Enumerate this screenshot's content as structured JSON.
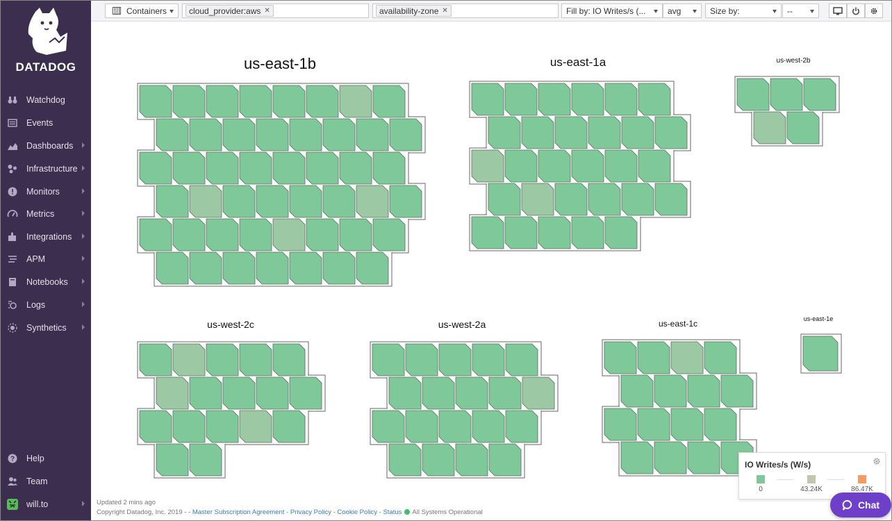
{
  "app": {
    "brand": "DATADOG"
  },
  "sidebar": {
    "items": [
      {
        "label": "Watchdog",
        "icon": "binoculars-icon",
        "chevron": false
      },
      {
        "label": "Events",
        "icon": "events-icon",
        "chevron": false
      },
      {
        "label": "Dashboards",
        "icon": "dashboards-icon",
        "chevron": true
      },
      {
        "label": "Infrastructure",
        "icon": "infrastructure-icon",
        "chevron": true
      },
      {
        "label": "Monitors",
        "icon": "monitors-icon",
        "chevron": true
      },
      {
        "label": "Metrics",
        "icon": "metrics-icon",
        "chevron": true
      },
      {
        "label": "Integrations",
        "icon": "integrations-icon",
        "chevron": true
      },
      {
        "label": "APM",
        "icon": "apm-icon",
        "chevron": true
      },
      {
        "label": "Notebooks",
        "icon": "notebooks-icon",
        "chevron": true
      },
      {
        "label": "Logs",
        "icon": "logs-icon",
        "chevron": true
      },
      {
        "label": "Synthetics",
        "icon": "synthetics-icon",
        "chevron": true
      }
    ],
    "bottom": [
      {
        "label": "Help",
        "icon": "help-icon",
        "chevron": false
      },
      {
        "label": "Team",
        "icon": "team-icon",
        "chevron": false
      },
      {
        "label": "will.to",
        "icon": "user-avatar-icon",
        "chevron": true
      }
    ]
  },
  "toolbar": {
    "type_select": "Containers",
    "filter_tag": "cloud_provider:aws",
    "group_tag": "availability-zone",
    "fill_by": "Fill by: IO Writes/s (...",
    "fill_agg": "avg",
    "size_by": "Size by:",
    "size_agg": "--"
  },
  "zones": [
    {
      "name": "us-east-1b",
      "rows": [
        8,
        8,
        8,
        8,
        8,
        7
      ],
      "tint": [
        [
          3,
          1
        ],
        [
          3,
          6
        ],
        [
          4,
          4
        ],
        [
          0,
          6
        ]
      ]
    },
    {
      "name": "us-east-1a",
      "rows": [
        6,
        6,
        6,
        6,
        5
      ],
      "tint": [
        [
          2,
          0
        ],
        [
          3,
          1
        ]
      ]
    },
    {
      "name": "us-west-2b",
      "rows": [
        3,
        2
      ],
      "tint": [
        [
          1,
          0
        ]
      ]
    },
    {
      "name": "us-west-2c",
      "rows": [
        5,
        5,
        5,
        2
      ],
      "tint": [
        [
          1,
          0
        ],
        [
          2,
          3
        ],
        [
          0,
          1
        ]
      ]
    },
    {
      "name": "us-west-2a",
      "rows": [
        5,
        5,
        5,
        4
      ],
      "tint": [
        [
          1,
          4
        ]
      ]
    },
    {
      "name": "us-east-1c",
      "rows": [
        4,
        4,
        4,
        4
      ],
      "tint": [
        [
          0,
          2
        ]
      ]
    },
    {
      "name": "us-east-1e",
      "rows": [
        1
      ],
      "tint": []
    }
  ],
  "colors": {
    "hex_normal": "#7ec899",
    "hex_tint": "#9cc8a4",
    "hex_stroke": "#5a6e5e",
    "sidebar_bg": "#3b2e4e",
    "chat_bg": "#6e40c9"
  },
  "legend": {
    "title": "IO Writes/s (W/s)",
    "stops": [
      {
        "value": "0",
        "color": "#7ec899"
      },
      {
        "value": "43.24K",
        "color": "#c3c3b0"
      },
      {
        "value": "86.47K",
        "color": "#f59a62"
      }
    ]
  },
  "footer": {
    "updated": "Updated 2 mins ago",
    "copyright": "Copyright Datadog, Inc. 2019 - ",
    "sep1": "- ",
    "link_msa": "Master Subscription Agreement",
    "link_privacy": "Privacy Policy",
    "link_cookie": "Cookie Policy",
    "link_status": "Status",
    "status_text": "All Systems Operational"
  },
  "chat": {
    "label": "Chat"
  }
}
